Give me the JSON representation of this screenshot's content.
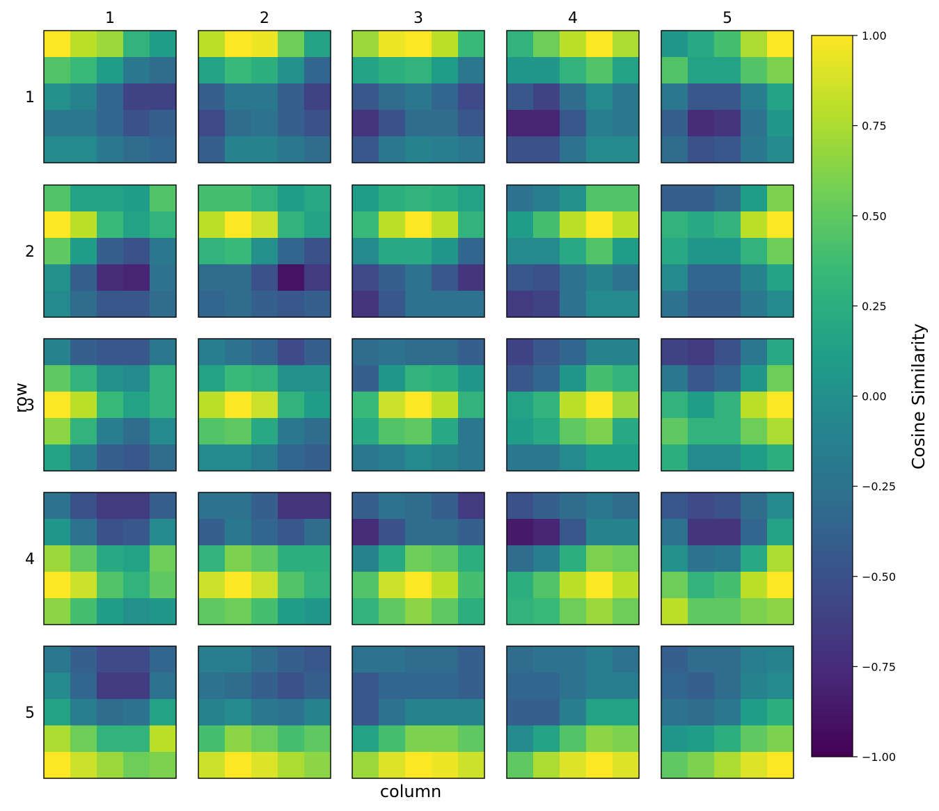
{
  "chart_data": {
    "type": "heatmap",
    "title": "",
    "xlabel": "column",
    "ylabel": "row",
    "col_labels": [
      "1",
      "2",
      "3",
      "4",
      "5"
    ],
    "row_labels": [
      "1",
      "2",
      "3",
      "4",
      "5"
    ],
    "colorbar": {
      "label": "Cosine Similarity",
      "range": [
        -1.0,
        1.0
      ],
      "ticks": [
        1.0,
        0.75,
        0.5,
        0.25,
        0.0,
        -0.25,
        -0.5,
        -0.75,
        -1.0
      ],
      "tick_labels": [
        "1.00",
        "0.75",
        "0.50",
        "0.25",
        "0.00",
        "−0.25",
        "−0.50",
        "−0.75",
        "−1.00"
      ],
      "colormap": "viridis"
    },
    "panels": [
      [
        [
          [
            1.0,
            0.8,
            0.7,
            0.3,
            0.1
          ],
          [
            0.45,
            0.35,
            0.1,
            -0.2,
            -0.3
          ],
          [
            0.0,
            -0.1,
            -0.35,
            -0.6,
            -0.6
          ],
          [
            -0.2,
            -0.2,
            -0.35,
            -0.5,
            -0.4
          ],
          [
            -0.05,
            -0.05,
            -0.2,
            -0.3,
            -0.35
          ]
        ],
        [
          [
            0.8,
            1.0,
            0.95,
            0.55,
            0.15
          ],
          [
            0.15,
            0.35,
            0.25,
            0.0,
            -0.35
          ],
          [
            -0.4,
            -0.2,
            -0.2,
            -0.4,
            -0.6
          ],
          [
            -0.55,
            -0.3,
            -0.25,
            -0.4,
            -0.5
          ],
          [
            -0.4,
            -0.1,
            -0.1,
            -0.2,
            -0.3
          ]
        ],
        [
          [
            0.7,
            0.95,
            1.0,
            0.8,
            0.35
          ],
          [
            0.15,
            0.25,
            0.3,
            0.1,
            -0.2
          ],
          [
            -0.45,
            -0.3,
            -0.2,
            -0.35,
            -0.55
          ],
          [
            -0.7,
            -0.5,
            -0.3,
            -0.3,
            -0.45
          ],
          [
            -0.45,
            -0.2,
            -0.1,
            -0.15,
            -0.2
          ]
        ],
        [
          [
            0.3,
            0.55,
            0.8,
            1.0,
            0.75
          ],
          [
            0.05,
            0.05,
            0.3,
            0.45,
            0.15
          ],
          [
            -0.45,
            -0.6,
            -0.3,
            -0.05,
            -0.2
          ],
          [
            -0.8,
            -0.8,
            -0.45,
            -0.15,
            -0.2
          ],
          [
            -0.5,
            -0.5,
            -0.25,
            -0.05,
            -0.05
          ]
        ],
        [
          [
            0.05,
            0.2,
            0.4,
            0.75,
            1.0
          ],
          [
            0.45,
            0.15,
            0.15,
            0.45,
            0.6
          ],
          [
            -0.2,
            -0.45,
            -0.45,
            -0.15,
            0.15
          ],
          [
            -0.4,
            -0.75,
            -0.7,
            -0.25,
            0.05
          ],
          [
            -0.3,
            -0.5,
            -0.45,
            -0.2,
            -0.05
          ]
        ]
      ],
      [
        [
          [
            0.45,
            0.15,
            0.15,
            0.1,
            0.45
          ],
          [
            1.0,
            0.8,
            0.35,
            0.15,
            0.3
          ],
          [
            0.5,
            0.1,
            -0.4,
            -0.5,
            -0.2
          ],
          [
            0.0,
            -0.4,
            -0.75,
            -0.8,
            -0.25
          ],
          [
            -0.05,
            -0.3,
            -0.45,
            -0.45,
            -0.3
          ]
        ],
        [
          [
            0.4,
            0.4,
            0.3,
            0.1,
            0.2
          ],
          [
            0.8,
            1.0,
            0.85,
            0.3,
            0.15
          ],
          [
            0.3,
            0.35,
            0.0,
            -0.35,
            -0.5
          ],
          [
            -0.3,
            -0.3,
            -0.5,
            -0.9,
            -0.65
          ],
          [
            -0.35,
            -0.3,
            -0.4,
            -0.45,
            -0.4
          ]
        ],
        [
          [
            0.1,
            0.25,
            0.3,
            0.25,
            0.15
          ],
          [
            0.35,
            0.8,
            1.0,
            0.8,
            0.3
          ],
          [
            -0.05,
            0.2,
            0.2,
            0.05,
            -0.35
          ],
          [
            -0.55,
            -0.4,
            -0.25,
            -0.45,
            -0.7
          ],
          [
            -0.7,
            -0.45,
            -0.25,
            -0.25,
            -0.25
          ]
        ],
        [
          [
            -0.25,
            -0.15,
            0.0,
            0.45,
            0.45
          ],
          [
            0.1,
            0.4,
            0.8,
            1.0,
            0.8
          ],
          [
            -0.05,
            -0.05,
            0.2,
            0.45,
            0.1
          ],
          [
            -0.45,
            -0.5,
            -0.25,
            -0.1,
            -0.25
          ],
          [
            -0.65,
            -0.6,
            -0.25,
            -0.05,
            -0.05
          ]
        ],
        [
          [
            -0.4,
            -0.4,
            -0.3,
            0.1,
            0.6
          ],
          [
            0.3,
            0.2,
            0.3,
            0.8,
            1.0
          ],
          [
            0.2,
            0.05,
            0.05,
            0.3,
            0.55
          ],
          [
            -0.05,
            -0.35,
            -0.35,
            -0.1,
            0.15
          ],
          [
            -0.25,
            -0.4,
            -0.4,
            -0.2,
            -0.05
          ]
        ]
      ],
      [
        [
          [
            -0.1,
            -0.4,
            -0.45,
            -0.45,
            -0.2
          ],
          [
            0.5,
            0.3,
            0.0,
            -0.05,
            0.3
          ],
          [
            1.0,
            0.8,
            0.35,
            0.15,
            0.3
          ],
          [
            0.65,
            0.3,
            -0.15,
            -0.3,
            -0.05
          ],
          [
            0.15,
            -0.15,
            -0.4,
            -0.45,
            -0.3
          ]
        ],
        [
          [
            -0.15,
            -0.25,
            -0.35,
            -0.55,
            -0.4
          ],
          [
            0.15,
            0.35,
            0.3,
            0.0,
            0.0
          ],
          [
            0.8,
            1.0,
            0.85,
            0.3,
            0.1
          ],
          [
            0.45,
            0.5,
            0.2,
            -0.2,
            -0.3
          ],
          [
            -0.05,
            -0.05,
            -0.15,
            -0.35,
            -0.4
          ]
        ],
        [
          [
            -0.3,
            -0.25,
            -0.3,
            -0.3,
            -0.4
          ],
          [
            -0.4,
            0.05,
            0.3,
            0.25,
            0.05
          ],
          [
            0.35,
            0.85,
            1.0,
            0.8,
            0.3
          ],
          [
            0.2,
            0.45,
            0.5,
            0.2,
            -0.2
          ],
          [
            -0.2,
            -0.15,
            -0.05,
            -0.1,
            -0.2
          ]
        ],
        [
          [
            -0.6,
            -0.45,
            -0.35,
            -0.1,
            -0.1
          ],
          [
            -0.45,
            -0.35,
            0.05,
            0.4,
            0.3
          ],
          [
            0.15,
            0.3,
            0.8,
            1.0,
            0.7
          ],
          [
            0.1,
            0.2,
            0.5,
            0.6,
            0.2
          ],
          [
            -0.2,
            -0.2,
            -0.05,
            0.1,
            0.1
          ]
        ],
        [
          [
            -0.6,
            -0.65,
            -0.5,
            -0.2,
            0.2
          ],
          [
            -0.2,
            -0.45,
            -0.35,
            0.05,
            0.55
          ],
          [
            0.3,
            0.1,
            0.3,
            0.8,
            1.0
          ],
          [
            0.5,
            0.3,
            0.3,
            0.55,
            0.75
          ],
          [
            0.25,
            -0.05,
            -0.05,
            0.1,
            0.25
          ]
        ]
      ],
      [
        [
          [
            -0.25,
            -0.5,
            -0.65,
            -0.65,
            -0.4
          ],
          [
            0.05,
            -0.25,
            -0.5,
            -0.45,
            -0.05
          ],
          [
            0.7,
            0.5,
            0.2,
            0.15,
            0.55
          ],
          [
            1.0,
            0.85,
            0.45,
            0.3,
            0.5
          ],
          [
            0.65,
            0.4,
            0.1,
            0.0,
            0.05
          ]
        ],
        [
          [
            -0.25,
            -0.25,
            -0.4,
            -0.7,
            -0.7
          ],
          [
            -0.4,
            -0.2,
            -0.35,
            -0.45,
            -0.3
          ],
          [
            0.3,
            0.6,
            0.5,
            0.25,
            0.25
          ],
          [
            0.85,
            1.0,
            0.85,
            0.45,
            0.3
          ],
          [
            0.5,
            0.55,
            0.4,
            0.1,
            0.05
          ]
        ],
        [
          [
            -0.4,
            -0.25,
            -0.3,
            -0.4,
            -0.65
          ],
          [
            -0.75,
            -0.5,
            -0.3,
            -0.3,
            -0.4
          ],
          [
            -0.1,
            0.2,
            0.55,
            0.5,
            0.25
          ],
          [
            0.45,
            0.85,
            1.0,
            0.8,
            0.4
          ],
          [
            0.3,
            0.5,
            0.65,
            0.5,
            0.25
          ]
        ],
        [
          [
            -0.5,
            -0.4,
            -0.3,
            -0.2,
            -0.3
          ],
          [
            -0.85,
            -0.8,
            -0.45,
            -0.1,
            -0.1
          ],
          [
            -0.3,
            -0.15,
            0.25,
            0.6,
            0.55
          ],
          [
            0.25,
            0.45,
            0.8,
            1.0,
            0.8
          ],
          [
            0.3,
            0.35,
            0.55,
            0.7,
            0.55
          ]
        ],
        [
          [
            -0.45,
            -0.55,
            -0.5,
            -0.3,
            -0.05
          ],
          [
            -0.25,
            -0.7,
            -0.7,
            -0.35,
            0.15
          ],
          [
            0.0,
            -0.25,
            -0.2,
            0.2,
            0.75
          ],
          [
            0.55,
            0.3,
            0.4,
            0.8,
            1.0
          ],
          [
            0.8,
            0.5,
            0.5,
            0.6,
            0.65
          ]
        ]
      ],
      [
        [
          [
            -0.2,
            -0.4,
            -0.55,
            -0.55,
            -0.35
          ],
          [
            -0.05,
            -0.35,
            -0.65,
            -0.65,
            -0.25
          ],
          [
            0.15,
            -0.15,
            -0.3,
            -0.25,
            0.15
          ],
          [
            0.75,
            0.55,
            0.3,
            0.3,
            0.8
          ],
          [
            1.0,
            0.85,
            0.7,
            0.55,
            0.6
          ]
        ],
        [
          [
            -0.15,
            -0.15,
            -0.3,
            -0.4,
            -0.45
          ],
          [
            -0.25,
            -0.3,
            -0.4,
            -0.5,
            -0.4
          ],
          [
            -0.1,
            -0.05,
            -0.2,
            -0.25,
            -0.1
          ],
          [
            0.4,
            0.65,
            0.55,
            0.4,
            0.5
          ],
          [
            0.85,
            1.0,
            0.9,
            0.75,
            0.65
          ]
        ],
        [
          [
            -0.25,
            -0.25,
            -0.3,
            -0.3,
            -0.4
          ],
          [
            -0.45,
            -0.35,
            -0.35,
            -0.35,
            -0.4
          ],
          [
            -0.45,
            -0.25,
            -0.1,
            -0.1,
            -0.1
          ],
          [
            0.15,
            0.4,
            0.6,
            0.6,
            0.5
          ],
          [
            0.7,
            0.9,
            1.0,
            0.95,
            0.85
          ]
        ],
        [
          [
            -0.3,
            -0.25,
            -0.25,
            -0.15,
            -0.25
          ],
          [
            -0.35,
            -0.35,
            -0.25,
            -0.15,
            -0.15
          ],
          [
            -0.4,
            -0.4,
            -0.15,
            0.15,
            0.15
          ],
          [
            -0.05,
            0.15,
            0.45,
            0.65,
            0.6
          ],
          [
            0.5,
            0.75,
            0.9,
            1.0,
            0.9
          ]
        ],
        [
          [
            -0.4,
            -0.3,
            -0.3,
            -0.15,
            -0.1
          ],
          [
            -0.35,
            -0.4,
            -0.3,
            -0.1,
            -0.05
          ],
          [
            -0.25,
            -0.3,
            -0.2,
            0.1,
            0.25
          ],
          [
            0.05,
            0.1,
            0.25,
            0.5,
            0.6
          ],
          [
            0.5,
            0.6,
            0.75,
            0.9,
            1.0
          ]
        ]
      ]
    ]
  }
}
